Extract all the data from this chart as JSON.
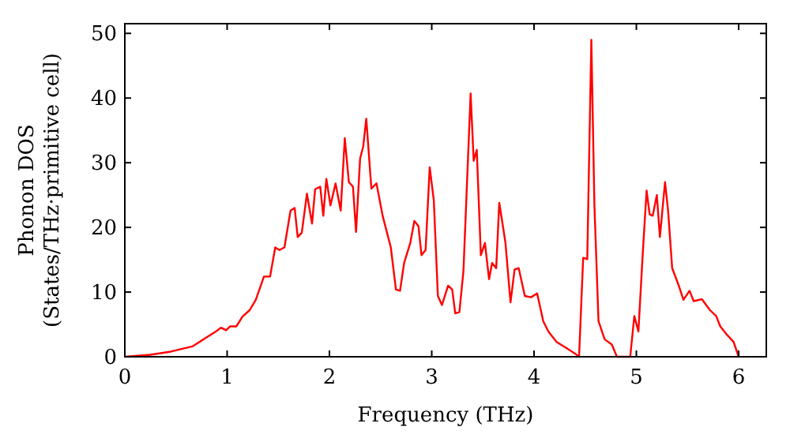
{
  "chart_data": {
    "type": "line",
    "xlabel": "Frequency (THz)",
    "ylabel": "Phonon DOS\n(States/THz·primitive cell)",
    "xlim": [
      0,
      6.27
    ],
    "ylim": [
      0,
      51.5
    ],
    "xticks": [
      0,
      1,
      2,
      3,
      4,
      5,
      6
    ],
    "yticks": [
      0,
      10,
      20,
      30,
      40,
      50
    ],
    "series": [
      {
        "color": "#ff0000",
        "x": [
          0,
          0.25,
          0.45,
          0.66,
          0.81,
          0.89,
          0.94,
          0.99,
          1.03,
          1.09,
          1.15,
          1.22,
          1.28,
          1.36,
          1.42,
          1.47,
          1.51,
          1.56,
          1.62,
          1.66,
          1.69,
          1.73,
          1.78,
          1.83,
          1.86,
          1.91,
          1.94,
          1.97,
          2.01,
          2.06,
          2.11,
          2.15,
          2.19,
          2.23,
          2.26,
          2.3,
          2.33,
          2.36,
          2.41,
          2.46,
          2.52,
          2.6,
          2.65,
          2.69,
          2.73,
          2.79,
          2.83,
          2.87,
          2.9,
          2.94,
          2.98,
          3.02,
          3.06,
          3.1,
          3.16,
          3.2,
          3.23,
          3.27,
          3.31,
          3.38,
          3.41,
          3.44,
          3.48,
          3.52,
          3.56,
          3.59,
          3.63,
          3.66,
          3.72,
          3.77,
          3.81,
          3.85,
          3.91,
          3.97,
          4.03,
          4.09,
          4.14,
          4.22,
          4.32,
          4.4,
          4.44,
          4.48,
          4.52,
          4.56,
          4.59,
          4.63,
          4.69,
          4.76,
          4.81,
          4.94,
          4.98,
          5.02,
          5.06,
          5.1,
          5.13,
          5.16,
          5.2,
          5.23,
          5.28,
          5.31,
          5.35,
          5.41,
          5.46,
          5.52,
          5.56,
          5.64,
          5.72,
          5.78,
          5.82,
          5.88,
          5.95,
          6.0
        ],
        "values": [
          0,
          0.3,
          0.8,
          1.6,
          3.1,
          3.9,
          4.5,
          4.1,
          4.7,
          4.7,
          6.2,
          7.2,
          8.8,
          12.4,
          12.4,
          16.9,
          16.5,
          16.9,
          22.6,
          23,
          18.5,
          19.2,
          25.2,
          20.6,
          25.9,
          26.3,
          21.8,
          27.5,
          23.4,
          26.8,
          22.6,
          33.8,
          27,
          26.3,
          19.3,
          30.7,
          32.5,
          36.8,
          26,
          26.8,
          21.8,
          16.9,
          10.4,
          10.2,
          14.5,
          17.6,
          21,
          20.2,
          15.7,
          16.5,
          29.3,
          24.2,
          9.4,
          8,
          11,
          10.4,
          6.7,
          6.9,
          13.3,
          40.7,
          30.3,
          32,
          15.7,
          17.6,
          12,
          14.5,
          13.7,
          23.8,
          17.7,
          8.4,
          13.5,
          13.7,
          9.4,
          9.2,
          9.8,
          5.5,
          3.9,
          2.3,
          1.3,
          0.5,
          0,
          15.3,
          15.1,
          49,
          23.4,
          5.5,
          2.7,
          1.9,
          0,
          0,
          6.3,
          3.9,
          15.3,
          25.7,
          22,
          21.8,
          25,
          18.5,
          27,
          22.6,
          13.7,
          11.2,
          8.8,
          10.2,
          8.6,
          8.9,
          7.2,
          6.3,
          4.7,
          3.5,
          2.3,
          0
        ]
      }
    ]
  }
}
